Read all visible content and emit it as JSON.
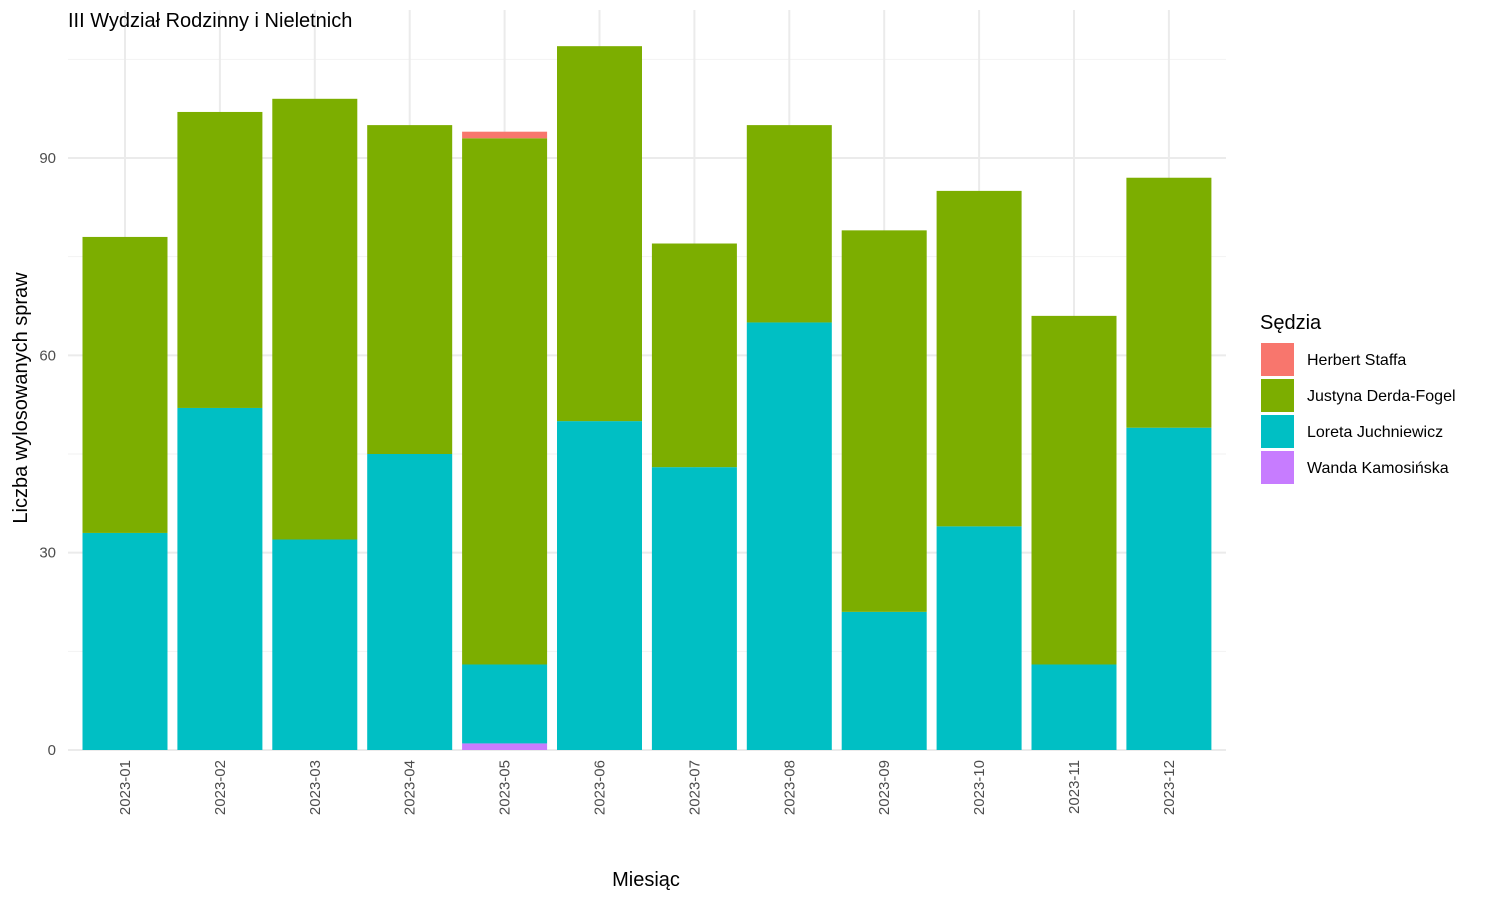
{
  "chart_data": {
    "type": "bar",
    "stacked": true,
    "title": "III Wydział Rodzinny i Nieletnich",
    "xlabel": "Miesiąc",
    "ylabel": "Liczba wylosowanych spraw",
    "ylim": [
      0,
      110
    ],
    "yticks": [
      0,
      30,
      60,
      90
    ],
    "grid": true,
    "legend_title": "Sędzia",
    "legend_position": "right",
    "categories": [
      "2023-01",
      "2023-02",
      "2023-03",
      "2023-04",
      "2023-05",
      "2023-06",
      "2023-07",
      "2023-08",
      "2023-09",
      "2023-10",
      "2023-11",
      "2023-12"
    ],
    "series": [
      {
        "name": "Herbert Staffa",
        "color": "#F8766D",
        "values": [
          0,
          0,
          0,
          0,
          1,
          0,
          0,
          0,
          0,
          0,
          0,
          0
        ]
      },
      {
        "name": "Justyna Derda-Fogel",
        "color": "#7CAE00",
        "values": [
          45,
          45,
          67,
          50,
          80,
          57,
          34,
          30,
          58,
          51,
          53,
          38
        ]
      },
      {
        "name": "Loreta Juchniewicz",
        "color": "#00BFC4",
        "values": [
          33,
          52,
          32,
          45,
          12,
          50,
          43,
          65,
          21,
          34,
          13,
          49
        ]
      },
      {
        "name": "Wanda Kamosińska",
        "color": "#C77CFF",
        "values": [
          0,
          0,
          0,
          0,
          1,
          0,
          0,
          0,
          0,
          0,
          0,
          0
        ]
      }
    ],
    "stack_order_bottom_to_top": [
      "Wanda Kamosińska",
      "Loreta Juchniewicz",
      "Justyna Derda-Fogel",
      "Herbert Staffa"
    ]
  }
}
